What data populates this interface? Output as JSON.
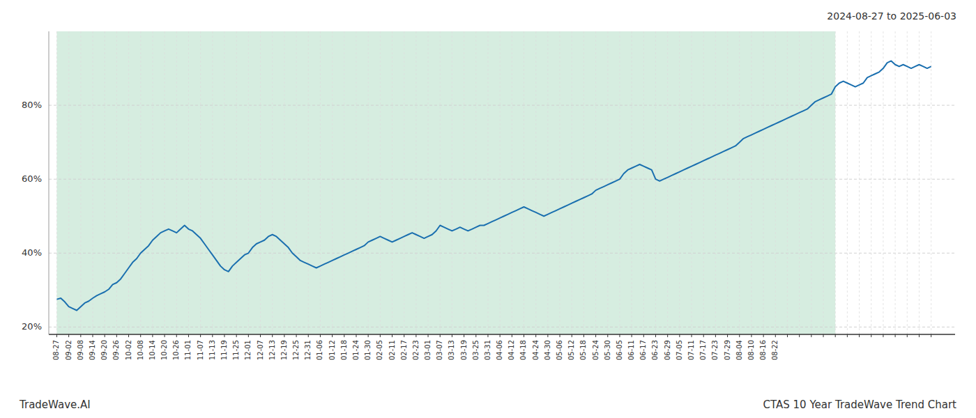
{
  "chart_data": {
    "type": "line",
    "title": "2024-08-27 to 2025-06-03",
    "annotations": [
      "TradeWave.AI",
      "CTAS 10 Year TradeWave Trend Chart"
    ],
    "color": "#1a6faf",
    "grid": true,
    "ylim": [
      18,
      100
    ],
    "yticks": [
      {
        "value": 20,
        "label": "20%"
      },
      {
        "value": 40,
        "label": "40%"
      },
      {
        "value": 60,
        "label": "60%"
      },
      {
        "value": 80,
        "label": "80%"
      }
    ],
    "shaded_region": {
      "from": 0,
      "to": 195,
      "color": "#d6ede0"
    },
    "categories": [
      "08-27",
      null,
      null,
      "09-02",
      null,
      null,
      "09-08",
      null,
      null,
      "09-14",
      null,
      null,
      "09-20",
      null,
      null,
      "09-26",
      null,
      null,
      "10-02",
      null,
      null,
      "10-08",
      null,
      null,
      "10-14",
      null,
      null,
      "10-20",
      null,
      null,
      "10-26",
      null,
      null,
      "11-01",
      null,
      null,
      "11-07",
      null,
      null,
      "11-13",
      null,
      null,
      "11-19",
      null,
      null,
      "11-25",
      null,
      null,
      "12-01",
      null,
      null,
      "12-07",
      null,
      null,
      "12-13",
      null,
      null,
      "12-19",
      null,
      null,
      "12-25",
      null,
      null,
      "12-31",
      null,
      null,
      "01-06",
      null,
      null,
      "01-12",
      null,
      null,
      "01-18",
      null,
      null,
      "01-24",
      null,
      null,
      "01-30",
      null,
      null,
      "02-05",
      null,
      null,
      "02-11",
      null,
      null,
      "02-17",
      null,
      null,
      "02-23",
      null,
      null,
      "03-01",
      null,
      null,
      "03-07",
      null,
      null,
      "03-13",
      null,
      null,
      "03-19",
      null,
      null,
      "03-25",
      null,
      null,
      "03-31",
      null,
      null,
      "04-06",
      null,
      null,
      "04-12",
      null,
      null,
      "04-18",
      null,
      null,
      "04-24",
      null,
      null,
      "04-30",
      null,
      null,
      "05-06",
      null,
      null,
      "05-12",
      null,
      null,
      "05-18",
      null,
      null,
      "05-24",
      null,
      null,
      "05-30",
      null,
      null,
      "06-05",
      null,
      null,
      "06-11",
      null,
      null,
      "06-17",
      null,
      null,
      "06-23",
      null,
      null,
      "06-29",
      null,
      null,
      "07-05",
      null,
      null,
      "07-11",
      null,
      null,
      "07-17",
      null,
      null,
      "07-23",
      null,
      null,
      "07-29",
      null,
      null,
      "08-04",
      null,
      null,
      "08-10",
      null,
      null,
      "08-16",
      null,
      null,
      "08-22",
      null,
      null,
      null,
      null,
      null,
      null,
      null,
      null,
      null,
      null,
      null,
      null,
      null,
      null,
      null,
      null,
      null,
      null,
      null,
      null,
      null,
      null,
      null,
      null,
      null,
      null,
      null,
      null,
      null,
      null,
      null,
      null,
      null,
      null,
      null,
      null,
      null,
      null,
      null
    ],
    "values": [
      27.5,
      27.8,
      26.8,
      25.5,
      25.0,
      24.5,
      25.5,
      26.5,
      27.0,
      27.8,
      28.5,
      29.0,
      29.5,
      30.2,
      31.5,
      32.0,
      33.0,
      34.5,
      36.0,
      37.5,
      38.5,
      40.0,
      41.0,
      42.0,
      43.5,
      44.5,
      45.5,
      46.0,
      46.5,
      46.0,
      45.5,
      46.5,
      47.5,
      46.5,
      46.0,
      45.0,
      44.0,
      42.5,
      41.0,
      39.5,
      38.0,
      36.5,
      35.5,
      35.0,
      36.5,
      37.5,
      38.5,
      39.5,
      40.0,
      41.5,
      42.5,
      43.0,
      43.5,
      44.5,
      45.0,
      44.5,
      43.5,
      42.5,
      41.5,
      40.0,
      39.0,
      38.0,
      37.5,
      37.0,
      36.5,
      36.0,
      36.5,
      37.0,
      37.5,
      38.0,
      38.5,
      39.0,
      39.5,
      40.0,
      40.5,
      41.0,
      41.5,
      42.0,
      43.0,
      43.5,
      44.0,
      44.5,
      44.0,
      43.5,
      43.0,
      43.5,
      44.0,
      44.5,
      45.0,
      45.5,
      45.0,
      44.5,
      44.0,
      44.5,
      45.0,
      46.0,
      47.5,
      47.0,
      46.5,
      46.0,
      46.5,
      47.0,
      46.5,
      46.0,
      46.5,
      47.0,
      47.5,
      47.5,
      48.0,
      48.5,
      49.0,
      49.5,
      50.0,
      50.5,
      51.0,
      51.5,
      52.0,
      52.5,
      52.0,
      51.5,
      51.0,
      50.5,
      50.0,
      50.5,
      51.0,
      51.5,
      52.0,
      52.5,
      53.0,
      53.5,
      54.0,
      54.5,
      55.0,
      55.5,
      56.0,
      57.0,
      57.5,
      58.0,
      58.5,
      59.0,
      59.5,
      60.0,
      61.5,
      62.5,
      63.0,
      63.5,
      64.0,
      63.5,
      63.0,
      62.5,
      60.0,
      59.5,
      60.0,
      60.5,
      61.0,
      61.5,
      62.0,
      62.5,
      63.0,
      63.5,
      64.0,
      64.5,
      65.0,
      65.5,
      66.0,
      66.5,
      67.0,
      67.5,
      68.0,
      68.5,
      69.0,
      70.0,
      71.0,
      71.5,
      72.0,
      72.5,
      73.0,
      73.5,
      74.0,
      74.5,
      75.0,
      75.5,
      76.0,
      76.5,
      77.0,
      77.5,
      78.0,
      78.5,
      79.0,
      80.0,
      81.0,
      81.5,
      82.0,
      82.5,
      83.0,
      85.0,
      86.0,
      86.5,
      86.0,
      85.5,
      85.0,
      85.5,
      86.0,
      87.5,
      88.0,
      88.5,
      89.0,
      90.0,
      91.5,
      92.0,
      91.0,
      90.5,
      91.0,
      90.5,
      90.0,
      90.5,
      91.0,
      90.5,
      90.0,
      90.5
    ]
  }
}
